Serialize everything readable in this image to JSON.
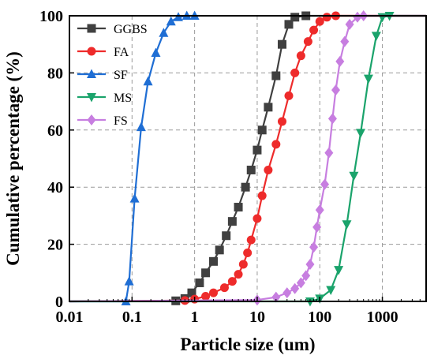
{
  "chart_data": {
    "type": "line",
    "xlabel": "Particle size (um)",
    "ylabel": "Cumulative percentage (%)",
    "x_scale": "log",
    "xlim": [
      0.01,
      5000
    ],
    "ylim": [
      0,
      100
    ],
    "x_ticks": [
      {
        "value": 0.01,
        "label": "0.01"
      },
      {
        "value": 0.1,
        "label": "0.1"
      },
      {
        "value": 1,
        "label": "1"
      },
      {
        "value": 10,
        "label": "10"
      },
      {
        "value": 100,
        "label": "100"
      },
      {
        "value": 1000,
        "label": "1000"
      }
    ],
    "y_ticks": [
      {
        "value": 0,
        "label": "0"
      },
      {
        "value": 20,
        "label": "20"
      },
      {
        "value": 40,
        "label": "40"
      },
      {
        "value": 60,
        "label": "60"
      },
      {
        "value": 80,
        "label": "80"
      },
      {
        "value": 100,
        "label": "100"
      }
    ],
    "grid": true,
    "legend_position": "top-left",
    "series": [
      {
        "name": "GGBS",
        "color": "#404040",
        "marker": "square",
        "points": [
          [
            0.01,
            0
          ],
          [
            0.5,
            0.2
          ],
          [
            0.7,
            1.0
          ],
          [
            0.9,
            3.0
          ],
          [
            1.2,
            6.5
          ],
          [
            1.5,
            10
          ],
          [
            2.0,
            14
          ],
          [
            2.5,
            18
          ],
          [
            3.2,
            23
          ],
          [
            4.0,
            28
          ],
          [
            5.0,
            33
          ],
          [
            6.5,
            40
          ],
          [
            8.0,
            46
          ],
          [
            10,
            53
          ],
          [
            12,
            60
          ],
          [
            15,
            68
          ],
          [
            20,
            79
          ],
          [
            25,
            90
          ],
          [
            32,
            97
          ],
          [
            40,
            99.5
          ],
          [
            60,
            100
          ],
          [
            5000,
            100
          ]
        ]
      },
      {
        "name": "FA",
        "color": "#ee2b2b",
        "marker": "circle",
        "points": [
          [
            0.01,
            0
          ],
          [
            0.7,
            0.3
          ],
          [
            1.0,
            0.8
          ],
          [
            1.5,
            1.8
          ],
          [
            2.0,
            3.0
          ],
          [
            3.0,
            4.8
          ],
          [
            4.0,
            7.0
          ],
          [
            5.0,
            9.5
          ],
          [
            6.0,
            13
          ],
          [
            7.0,
            17
          ],
          [
            8.0,
            21.5
          ],
          [
            10,
            29
          ],
          [
            12,
            37
          ],
          [
            15,
            46
          ],
          [
            20,
            55
          ],
          [
            25,
            63
          ],
          [
            32,
            72
          ],
          [
            40,
            80
          ],
          [
            50,
            86
          ],
          [
            65,
            91
          ],
          [
            80,
            95
          ],
          [
            100,
            98
          ],
          [
            130,
            99.5
          ],
          [
            180,
            100
          ],
          [
            5000,
            100
          ]
        ]
      },
      {
        "name": "SF",
        "color": "#1f6ed4",
        "marker": "triangle-up",
        "points": [
          [
            0.01,
            0
          ],
          [
            0.08,
            0
          ],
          [
            0.09,
            7
          ],
          [
            0.11,
            36
          ],
          [
            0.14,
            61
          ],
          [
            0.18,
            77
          ],
          [
            0.24,
            87
          ],
          [
            0.32,
            94
          ],
          [
            0.42,
            98
          ],
          [
            0.55,
            99.5
          ],
          [
            0.75,
            100
          ],
          [
            1.0,
            100
          ],
          [
            1.2,
            100
          ]
        ]
      },
      {
        "name": "MS",
        "color": "#1aa36b",
        "marker": "triangle-down",
        "points": [
          [
            0.01,
            0
          ],
          [
            70,
            0
          ],
          [
            100,
            1
          ],
          [
            150,
            4
          ],
          [
            200,
            11
          ],
          [
            270,
            27
          ],
          [
            350,
            44
          ],
          [
            450,
            59
          ],
          [
            600,
            78
          ],
          [
            800,
            93
          ],
          [
            1000,
            99.5
          ],
          [
            1300,
            100
          ],
          [
            5000,
            100
          ]
        ]
      },
      {
        "name": "FS",
        "color": "#c77ee0",
        "marker": "diamond",
        "points": [
          [
            0.01,
            0
          ],
          [
            10,
            0.5
          ],
          [
            20,
            1.5
          ],
          [
            30,
            3.0
          ],
          [
            40,
            4.5
          ],
          [
            50,
            6.5
          ],
          [
            60,
            9
          ],
          [
            70,
            13
          ],
          [
            80,
            19
          ],
          [
            90,
            26
          ],
          [
            100,
            32
          ],
          [
            120,
            41
          ],
          [
            140,
            52
          ],
          [
            160,
            64
          ],
          [
            180,
            74
          ],
          [
            210,
            84
          ],
          [
            250,
            91
          ],
          [
            300,
            97
          ],
          [
            400,
            99.5
          ],
          [
            500,
            100
          ],
          [
            5000,
            100
          ]
        ]
      }
    ]
  }
}
